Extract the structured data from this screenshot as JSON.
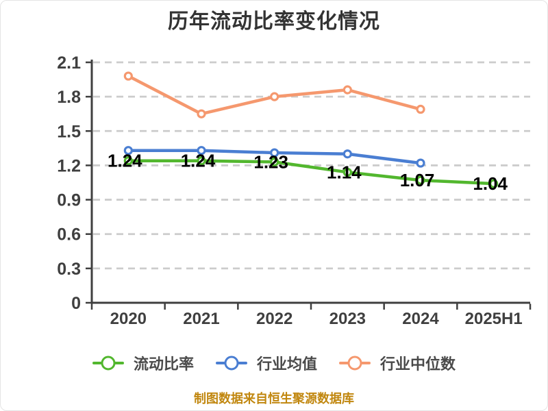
{
  "chart_data": {
    "type": "line",
    "title": "历年流动比率变化情况",
    "categories": [
      "2020",
      "2021",
      "2022",
      "2023",
      "2024",
      "2025H1"
    ],
    "series": [
      {
        "name": "流动比率",
        "color": "#52b72e",
        "values": [
          1.24,
          1.24,
          1.23,
          1.14,
          1.07,
          1.04
        ],
        "data_labels": true
      },
      {
        "name": "行业均值",
        "color": "#4a7ed2",
        "values": [
          1.33,
          1.33,
          1.31,
          1.3,
          1.22,
          null
        ],
        "data_labels": false
      },
      {
        "name": "行业中位数",
        "color": "#f5986e",
        "values": [
          1.98,
          1.65,
          1.8,
          1.86,
          1.69,
          null
        ],
        "data_labels": false
      }
    ],
    "ylim": [
      0,
      2.1
    ],
    "ytick_step": 0.3,
    "ytick_labels": [
      "0",
      "0.3",
      "0.6",
      "0.9",
      "1.2",
      "1.5",
      "1.8",
      "2.1"
    ],
    "grid": "horizontal-dashed",
    "legend_position": "bottom",
    "style": {
      "grid_color": "#cccccc",
      "axis_color": "#3f3f3f",
      "tick_label_color": "#3f3f3f",
      "data_label_color": "#000000",
      "title_color": "#333333",
      "legend_text_color": "#4a4a4a",
      "marker_fill": "#ffffff"
    }
  },
  "footer": {
    "note": "制图数据来自恒生聚源数据库",
    "color": "#c1870f"
  }
}
